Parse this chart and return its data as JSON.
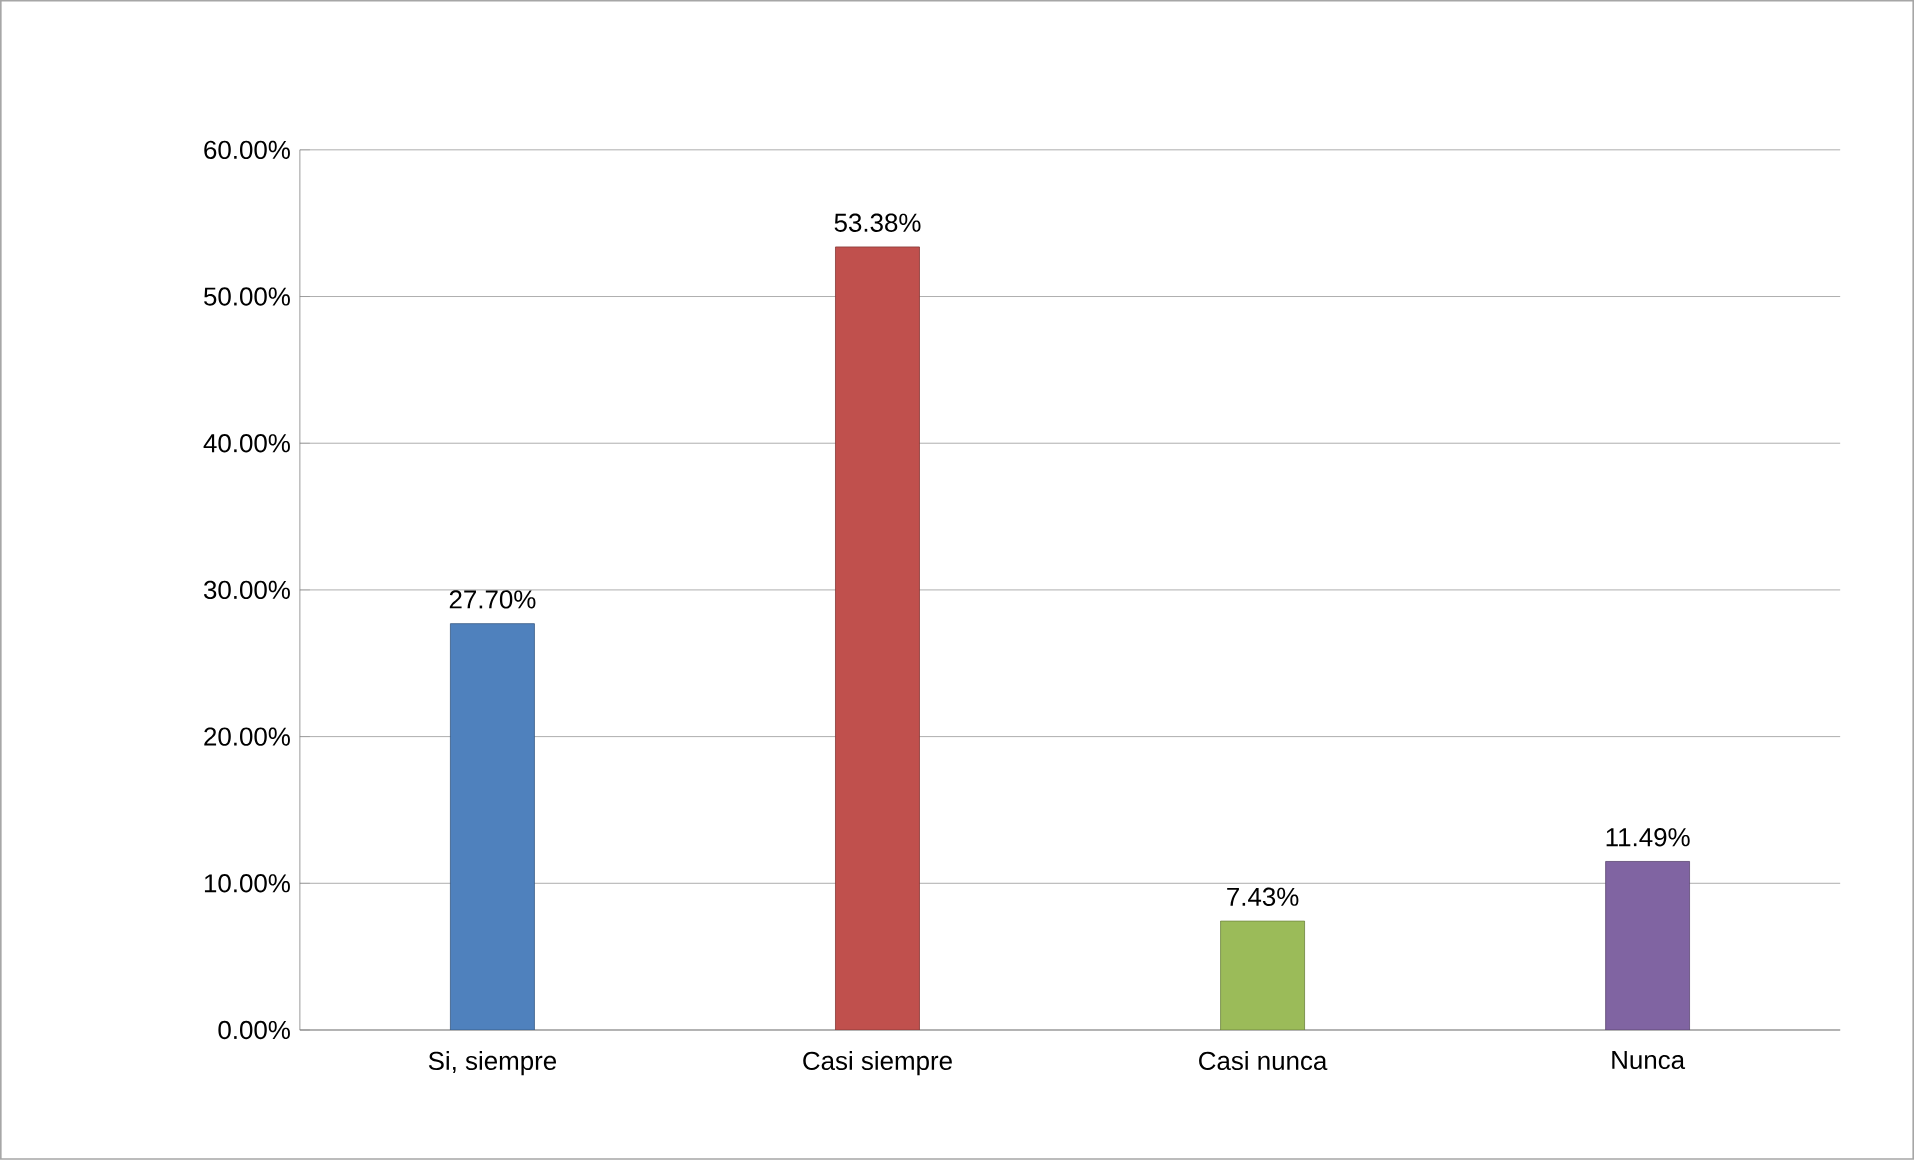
{
  "chart_data": {
    "type": "bar",
    "categories": [
      "Si, siempre",
      "Casi siempre",
      "Casi nunca",
      "Nunca"
    ],
    "values": [
      27.7,
      53.38,
      7.43,
      11.49
    ],
    "colors": [
      "#4f81bd",
      "#c0504d",
      "#9bbb59",
      "#8064a2"
    ],
    "value_labels": [
      "27.70%",
      "53.38%",
      "7.43%",
      "11.49%"
    ],
    "ylim": [
      0,
      60
    ],
    "yticks": [
      {
        "value": 0,
        "label": "0.00%"
      },
      {
        "value": 10,
        "label": "10.00%"
      },
      {
        "value": 20,
        "label": "20.00%"
      },
      {
        "value": 30,
        "label": "30.00%"
      },
      {
        "value": 40,
        "label": "40.00%"
      },
      {
        "value": 50,
        "label": "50.00%"
      },
      {
        "value": 60,
        "label": "60.00%"
      }
    ],
    "grid": "y"
  }
}
